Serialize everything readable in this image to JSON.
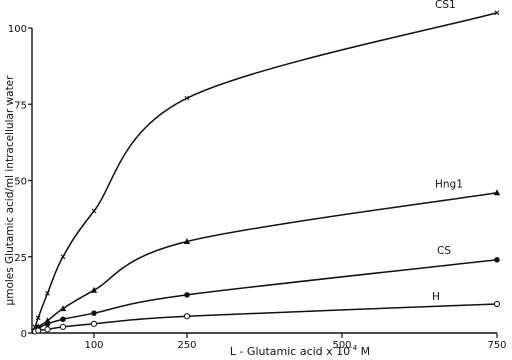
{
  "chart_data": {
    "type": "line",
    "xlabel": "L - Glutamic acid x 10",
    "xlabel_exponent": "-4",
    "xlabel_unit": "M",
    "ylabel": "μmoles Glutamic acid/ml intracellular water",
    "xlim": [
      0,
      750
    ],
    "ylim": [
      0,
      100
    ],
    "x_ticks": [
      {
        "value": 100,
        "label": "100"
      },
      {
        "value": 250,
        "label": "250"
      },
      {
        "value": 500,
        "label": "500"
      },
      {
        "value": 750,
        "label": "750"
      }
    ],
    "y_ticks": [
      {
        "value": 0,
        "label": "0"
      },
      {
        "value": 25,
        "label": "25"
      },
      {
        "value": 50,
        "label": "50"
      },
      {
        "value": 75,
        "label": "75"
      },
      {
        "value": 100,
        "label": "100"
      }
    ],
    "grid": false,
    "legend": "labels at right end of each curve",
    "series": [
      {
        "name": "CS1",
        "marker": "x",
        "x": [
          5,
          10,
          25,
          50,
          100,
          250,
          750
        ],
        "y": [
          2,
          5,
          13,
          25,
          40,
          77,
          105
        ]
      },
      {
        "name": "Hng1",
        "marker": "triangle",
        "x": [
          5,
          10,
          25,
          50,
          100,
          250,
          750
        ],
        "y": [
          1,
          2,
          4,
          8,
          14,
          30,
          46
        ]
      },
      {
        "name": "CS",
        "marker": "filled-circle",
        "x": [
          5,
          10,
          25,
          50,
          100,
          250,
          750
        ],
        "y": [
          0.8,
          1.5,
          3,
          4.5,
          6.5,
          12.5,
          24
        ]
      },
      {
        "name": "H",
        "marker": "open-circle",
        "x": [
          5,
          10,
          25,
          50,
          100,
          250,
          750
        ],
        "y": [
          0.5,
          0.8,
          1.2,
          2,
          3,
          5.5,
          9.5
        ]
      }
    ]
  }
}
